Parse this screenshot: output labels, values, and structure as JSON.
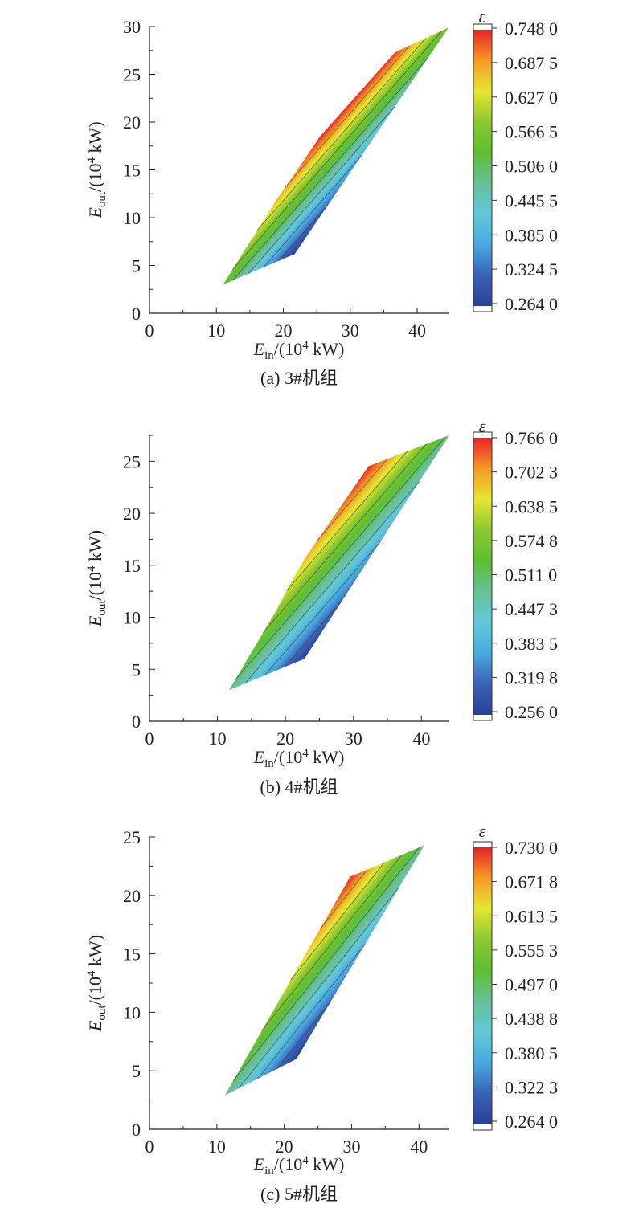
{
  "colormap": [
    "#2a3f98",
    "#3a62b6",
    "#4aa8e0",
    "#62c8d8",
    "#68bf98",
    "#5cbf30",
    "#8cc830",
    "#e6e630",
    "#f59a25",
    "#e62226"
  ],
  "chart_data": [
    {
      "type": "contour",
      "caption": "(a) 3#机组",
      "xlabel": {
        "var": "E",
        "sub": "in",
        "pre": "/(10",
        "sup": "4",
        "post": " kW)"
      },
      "ylabel": {
        "var": "E",
        "sub": "out",
        "pre": "/(10",
        "sup": "4",
        "post": " kW)"
      },
      "xlim": [
        0,
        44.8
      ],
      "ylim": [
        0,
        30
      ],
      "xticks": [
        "0",
        "10",
        "20",
        "30",
        "40"
      ],
      "yticks": [
        "0",
        "5",
        "10",
        "15",
        "20",
        "25",
        "30"
      ],
      "region": [
        [
          11.0,
          3.0
        ],
        [
          21.7,
          6.2
        ],
        [
          44.7,
          29.9
        ],
        [
          36.7,
          27.3
        ],
        [
          25.5,
          18.5
        ],
        [
          22.1,
          15.0
        ],
        [
          18.9,
          11.8
        ]
      ],
      "colorbar": {
        "title": "ε",
        "vmin": 0.264,
        "vmax": 0.748,
        "labels": [
          "0.748 0",
          "0.687 5",
          "0.627 0",
          "0.566 5",
          "0.506 0",
          "0.445 5",
          "0.385 0",
          "0.324 5",
          "0.264 0"
        ]
      }
    },
    {
      "type": "contour",
      "caption": "(b) 4#机组",
      "xlabel": {
        "var": "E",
        "sub": "in",
        "pre": "/(10",
        "sup": "4",
        "post": " kW)"
      },
      "ylabel": {
        "var": "E",
        "sub": "out",
        "pre": "/(10",
        "sup": "4",
        "post": " kW)"
      },
      "xlim": [
        0,
        44.1
      ],
      "ylim": [
        0,
        27.5
      ],
      "xticks": [
        "0",
        "10",
        "20",
        "30",
        "40"
      ],
      "yticks": [
        "0",
        "5",
        "10",
        "15",
        "20",
        "25"
      ],
      "region": [
        [
          11.7,
          3.0
        ],
        [
          22.8,
          6.0
        ],
        [
          44.1,
          27.5
        ],
        [
          37.2,
          25.8
        ],
        [
          32.2,
          24.5
        ],
        [
          23.0,
          15.8
        ],
        [
          20.6,
          13.1
        ],
        [
          18.6,
          10.6
        ]
      ],
      "colorbar": {
        "title": "ε",
        "vmin": 0.256,
        "vmax": 0.766,
        "labels": [
          "0.766 0",
          "0.702 3",
          "0.638 5",
          "0.574 8",
          "0.511 0",
          "0.447 3",
          "0.383 5",
          "0.319 8",
          "0.256 0"
        ]
      }
    },
    {
      "type": "contour",
      "caption": "(c) 5#机组",
      "xlabel": {
        "var": "E",
        "sub": "in",
        "pre": "/(10",
        "sup": "4",
        "post": " kW)"
      },
      "ylabel": {
        "var": "E",
        "sub": "out",
        "pre": "/(10",
        "sup": "4",
        "post": " kW)"
      },
      "xlim": [
        0,
        44.5
      ],
      "ylim": [
        0,
        25
      ],
      "xticks": [
        "0",
        "10",
        "20",
        "30",
        "40"
      ],
      "yticks": [
        "0",
        "5",
        "10",
        "15",
        "20",
        "25"
      ],
      "region": [
        [
          11.2,
          2.9
        ],
        [
          21.8,
          6.0
        ],
        [
          40.8,
          24.3
        ],
        [
          34.0,
          22.6
        ],
        [
          29.8,
          21.6
        ],
        [
          21.3,
          13.1
        ]
      ],
      "colorbar": {
        "title": "ε",
        "vmin": 0.264,
        "vmax": 0.73,
        "labels": [
          "0.730 0",
          "0.671 8",
          "0.613 5",
          "0.555 3",
          "0.497 0",
          "0.438 8",
          "0.380 5",
          "0.322 3",
          "0.264 0"
        ]
      }
    }
  ]
}
